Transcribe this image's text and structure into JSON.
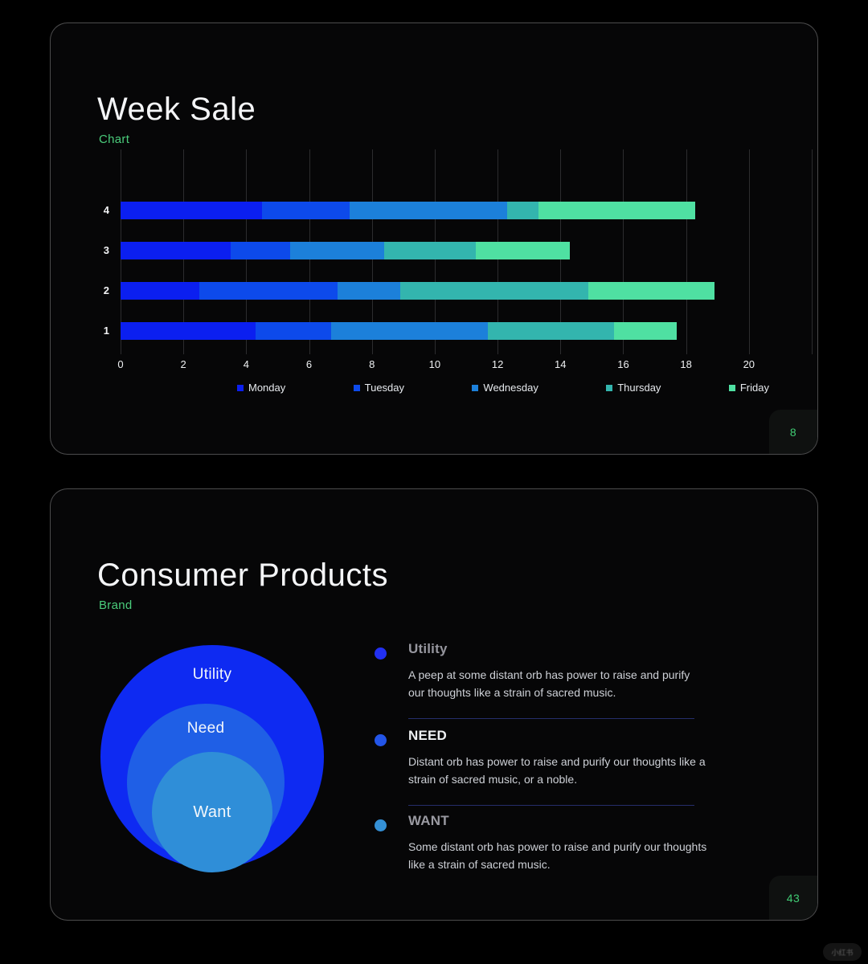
{
  "page": {
    "watermark": "小红书"
  },
  "slide1": {
    "title": "Week Sale",
    "subtitle": "Chart",
    "page_number": "8",
    "chart_data": {
      "type": "bar",
      "orientation": "horizontal",
      "stacked": true,
      "title": "Week Sale",
      "xlabel": "",
      "ylabel": "",
      "grid": true,
      "legend_position": "bottom",
      "categories": [
        "4",
        "3",
        "2",
        "1"
      ],
      "series": [
        {
          "name": "Monday",
          "color": "#0b1ff0",
          "values": [
            4.5,
            3.5,
            2.5,
            4.3
          ]
        },
        {
          "name": "Tuesday",
          "color": "#0d4aeb",
          "values": [
            2.8,
            1.9,
            4.4,
            2.4
          ]
        },
        {
          "name": "Wednesday",
          "color": "#1c80da",
          "values": [
            5.0,
            3.0,
            2.0,
            5.0
          ]
        },
        {
          "name": "Thursday",
          "color": "#33b5ae",
          "values": [
            1.0,
            2.9,
            6.0,
            4.0
          ]
        },
        {
          "name": "Friday",
          "color": "#4fe0a2",
          "values": [
            5.0,
            3.0,
            4.0,
            2.0
          ]
        }
      ],
      "xticks": [
        0,
        2,
        4,
        6,
        8,
        10,
        12,
        14,
        16,
        18,
        20
      ],
      "xlim": [
        0,
        22
      ]
    }
  },
  "slide2": {
    "title": "Consumer Products",
    "subtitle": "Brand",
    "page_number": "43",
    "diagram": {
      "type": "concentric-circles",
      "circles": [
        {
          "label": "Utility",
          "color": "#0e2af2"
        },
        {
          "label": "Need",
          "color": "#1f5fe6"
        },
        {
          "label": "Want",
          "color": "#2f8ed8"
        }
      ]
    },
    "bullets": [
      {
        "title": "Utility",
        "title_color": "#96969e",
        "dot_color": "#2230f2",
        "text": "A peep at some distant orb has power to raise and purify our thoughts like a strain of sacred music."
      },
      {
        "title": "NEED",
        "title_color": "#eef0f2",
        "dot_color": "#2355e8",
        "text": "Distant orb has power to raise and purify our thoughts like a strain of sacred music, or a noble."
      },
      {
        "title": "WANT",
        "title_color": "#9a9aa2",
        "dot_color": "#3490d6",
        "text": "Some distant orb has power to raise and purify our thoughts like a strain of sacred music."
      }
    ]
  }
}
